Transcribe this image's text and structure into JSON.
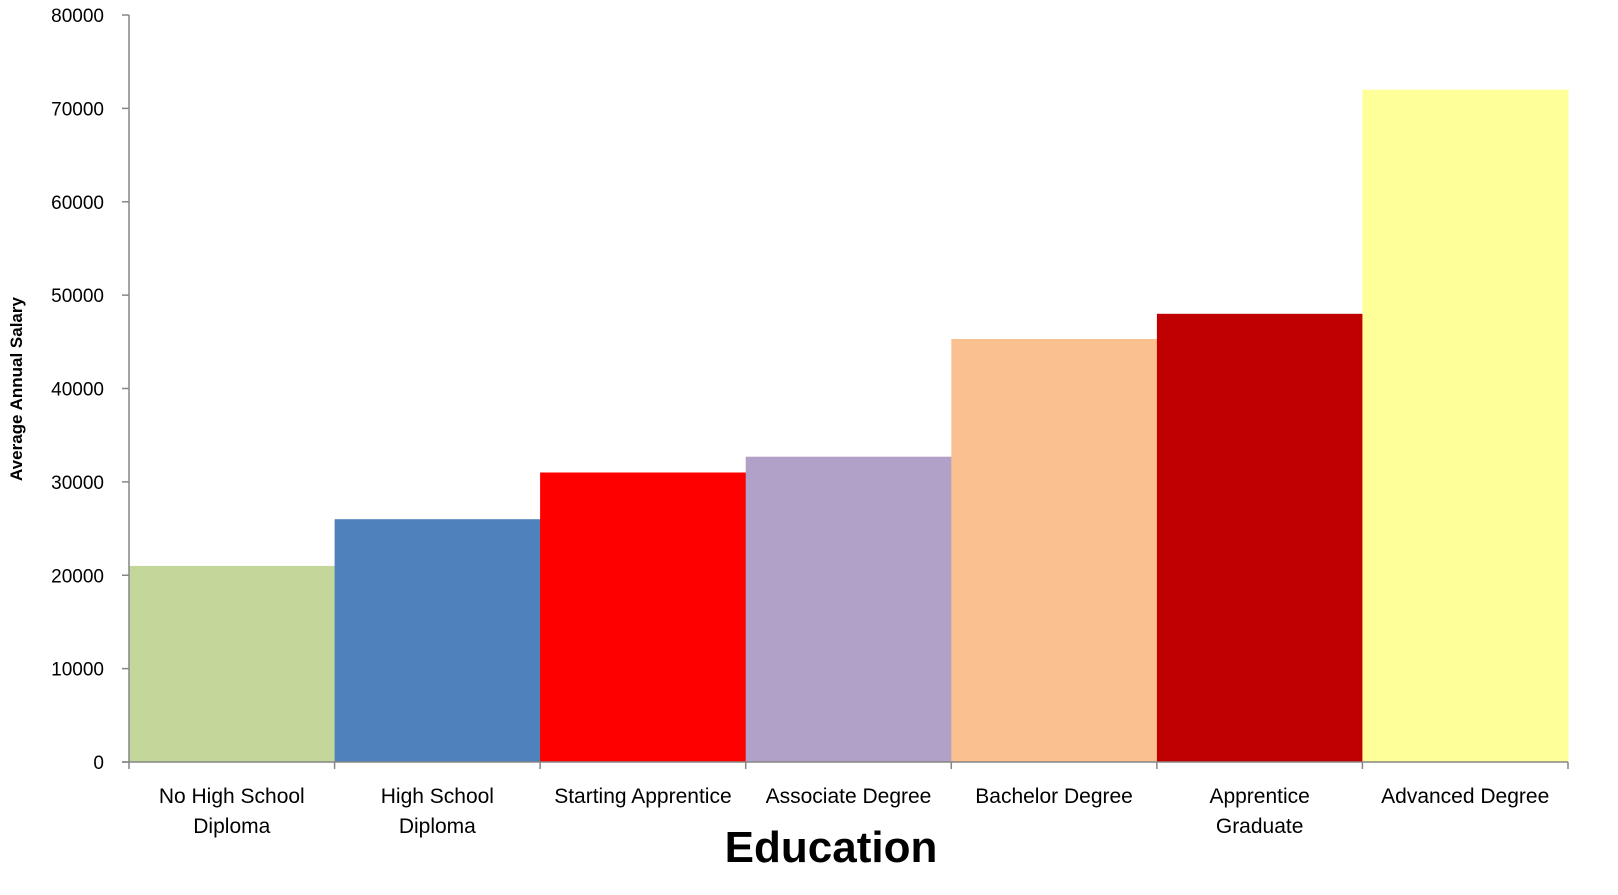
{
  "chart_data": {
    "type": "bar",
    "title": "",
    "xlabel": "Education",
    "ylabel": "Average Annual Salary",
    "ylim": [
      0,
      80000
    ],
    "yticks": [
      0,
      10000,
      20000,
      30000,
      40000,
      50000,
      60000,
      70000,
      80000
    ],
    "grid": false,
    "legend": "none",
    "categories": [
      [
        "No High School",
        "Diploma"
      ],
      [
        "High School",
        "Diploma"
      ],
      [
        "Starting Apprentice"
      ],
      [
        "Associate Degree"
      ],
      [
        "Bachelor Degree"
      ],
      [
        "Apprentice",
        "Graduate"
      ],
      [
        "Advanced Degree"
      ]
    ],
    "values": [
      21000,
      26000,
      31000,
      32700,
      45300,
      48000,
      72000
    ],
    "colors": [
      "#c4d79b",
      "#4f81bd",
      "#ff0000",
      "#b1a0c7",
      "#fac090",
      "#c00000",
      "#ffff99"
    ]
  }
}
